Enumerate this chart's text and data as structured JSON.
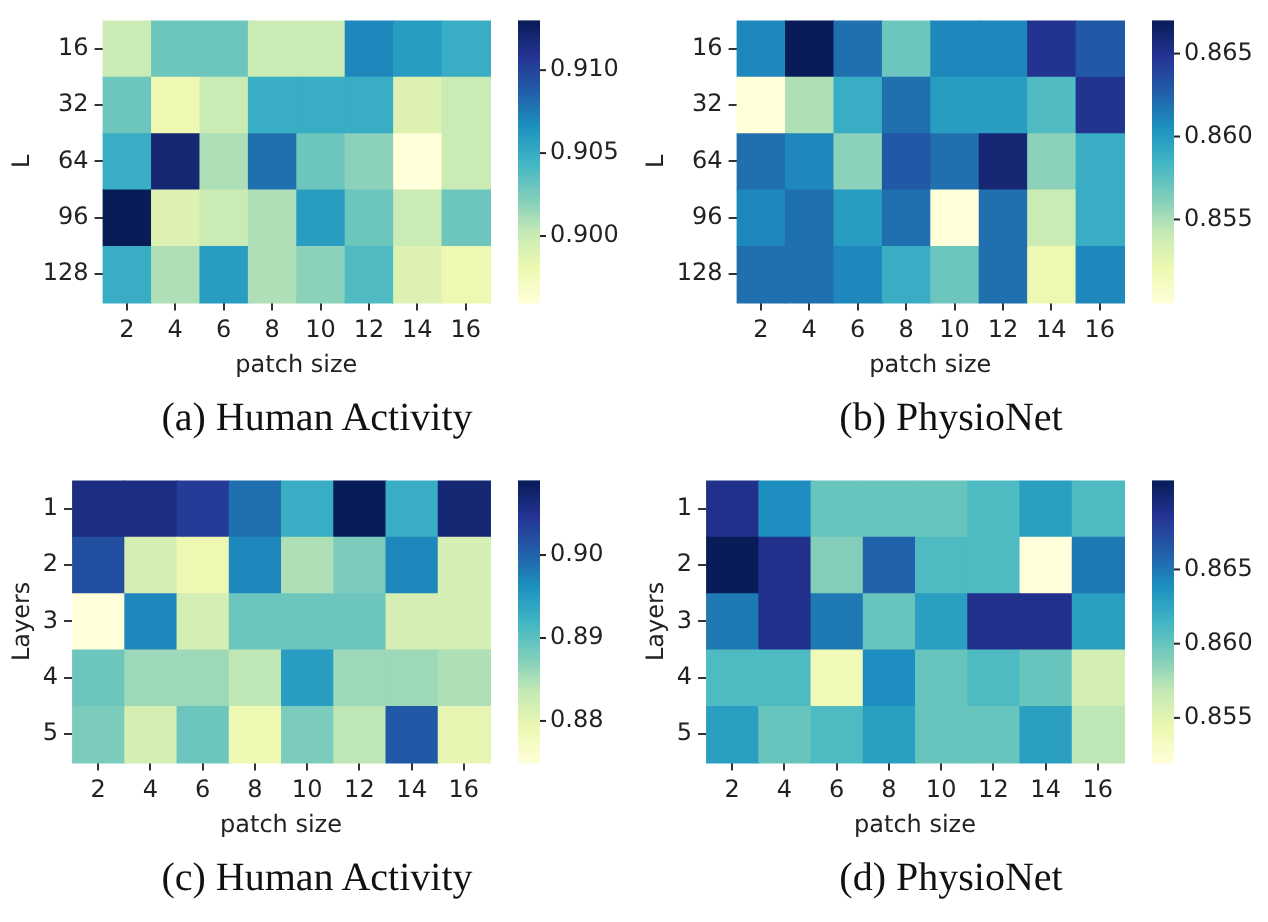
{
  "chart_data": [
    {
      "type": "heatmap",
      "xlabel": "patch size",
      "ylabel": "L",
      "annotations": [
        "(a) Human Activity"
      ],
      "categories": [
        "2",
        "4",
        "6",
        "8",
        "10",
        "12",
        "14",
        "16"
      ],
      "y_categories": [
        "16",
        "32",
        "64",
        "96",
        "128"
      ],
      "cells": [
        [
          0.9,
          0.903,
          0.903,
          0.9,
          0.9,
          0.907,
          0.906,
          0.905
        ],
        [
          0.903,
          0.898,
          0.9,
          0.905,
          0.905,
          0.905,
          0.899,
          0.9
        ],
        [
          0.905,
          0.912,
          0.901,
          0.908,
          0.903,
          0.902,
          0.896,
          0.9
        ],
        [
          0.913,
          0.899,
          0.9,
          0.901,
          0.906,
          0.903,
          0.9,
          0.903
        ],
        [
          0.905,
          0.901,
          0.906,
          0.901,
          0.902,
          0.904,
          0.899,
          0.898
        ]
      ],
      "clim": [
        0.896,
        0.913
      ],
      "cticks": [
        {
          "value": 0.9,
          "label": "0.900"
        },
        {
          "value": 0.905,
          "label": "0.905"
        },
        {
          "value": 0.91,
          "label": "0.910"
        }
      ]
    },
    {
      "type": "heatmap",
      "xlabel": "patch size",
      "ylabel": "L",
      "annotations": [
        "(b) PhysioNet"
      ],
      "categories": [
        "2",
        "4",
        "6",
        "8",
        "10",
        "12",
        "14",
        "16"
      ],
      "y_categories": [
        "16",
        "32",
        "64",
        "96",
        "128"
      ],
      "cells": [
        [
          0.861,
          0.867,
          0.862,
          0.857,
          0.861,
          0.861,
          0.865,
          0.863
        ],
        [
          0.85,
          0.855,
          0.859,
          0.862,
          0.86,
          0.86,
          0.858,
          0.865
        ],
        [
          0.862,
          0.861,
          0.856,
          0.863,
          0.862,
          0.866,
          0.856,
          0.859
        ],
        [
          0.861,
          0.862,
          0.86,
          0.862,
          0.85,
          0.862,
          0.854,
          0.859
        ],
        [
          0.862,
          0.862,
          0.861,
          0.859,
          0.857,
          0.862,
          0.852,
          0.861
        ]
      ],
      "clim": [
        0.85,
        0.867
      ],
      "cticks": [
        {
          "value": 0.855,
          "label": "0.855"
        },
        {
          "value": 0.86,
          "label": "0.860"
        },
        {
          "value": 0.865,
          "label": "0.865"
        }
      ]
    },
    {
      "type": "heatmap",
      "xlabel": "patch size",
      "ylabel": "Layers",
      "annotations": [
        "(c) Human Activity"
      ],
      "categories": [
        "2",
        "4",
        "6",
        "8",
        "10",
        "12",
        "14",
        "16"
      ],
      "y_categories": [
        "1",
        "2",
        "3",
        "4",
        "5"
      ],
      "cells": [
        [
          0.906,
          0.906,
          0.904,
          0.899,
          0.893,
          0.909,
          0.893,
          0.907
        ],
        [
          0.902,
          0.882,
          0.879,
          0.897,
          0.885,
          0.888,
          0.897,
          0.882
        ],
        [
          0.875,
          0.897,
          0.882,
          0.889,
          0.889,
          0.889,
          0.882,
          0.882
        ],
        [
          0.889,
          0.886,
          0.886,
          0.884,
          0.895,
          0.886,
          0.886,
          0.885
        ],
        [
          0.888,
          0.882,
          0.889,
          0.879,
          0.888,
          0.884,
          0.901,
          0.88
        ]
      ],
      "clim": [
        0.875,
        0.909
      ],
      "cticks": [
        {
          "value": 0.88,
          "label": "0.88"
        },
        {
          "value": 0.89,
          "label": "0.89"
        },
        {
          "value": 0.9,
          "label": "0.90"
        }
      ]
    },
    {
      "type": "heatmap",
      "xlabel": "patch size",
      "ylabel": "Layers",
      "annotations": [
        "(d) PhysioNet"
      ],
      "categories": [
        "2",
        "4",
        "6",
        "8",
        "10",
        "12",
        "14",
        "16"
      ],
      "y_categories": [
        "1",
        "2",
        "3",
        "4",
        "5"
      ],
      "cells": [
        [
          0.869,
          0.864,
          0.86,
          0.86,
          0.86,
          0.861,
          0.863,
          0.861
        ],
        [
          0.871,
          0.869,
          0.859,
          0.866,
          0.861,
          0.861,
          0.852,
          0.865
        ],
        [
          0.865,
          0.869,
          0.865,
          0.86,
          0.863,
          0.869,
          0.869,
          0.863
        ],
        [
          0.861,
          0.861,
          0.854,
          0.864,
          0.86,
          0.861,
          0.86,
          0.856
        ],
        [
          0.863,
          0.86,
          0.861,
          0.863,
          0.86,
          0.86,
          0.863,
          0.857
        ]
      ],
      "clim": [
        0.852,
        0.871
      ],
      "cticks": [
        {
          "value": 0.855,
          "label": "0.855"
        },
        {
          "value": 0.86,
          "label": "0.860"
        },
        {
          "value": 0.865,
          "label": "0.865"
        }
      ]
    }
  ]
}
